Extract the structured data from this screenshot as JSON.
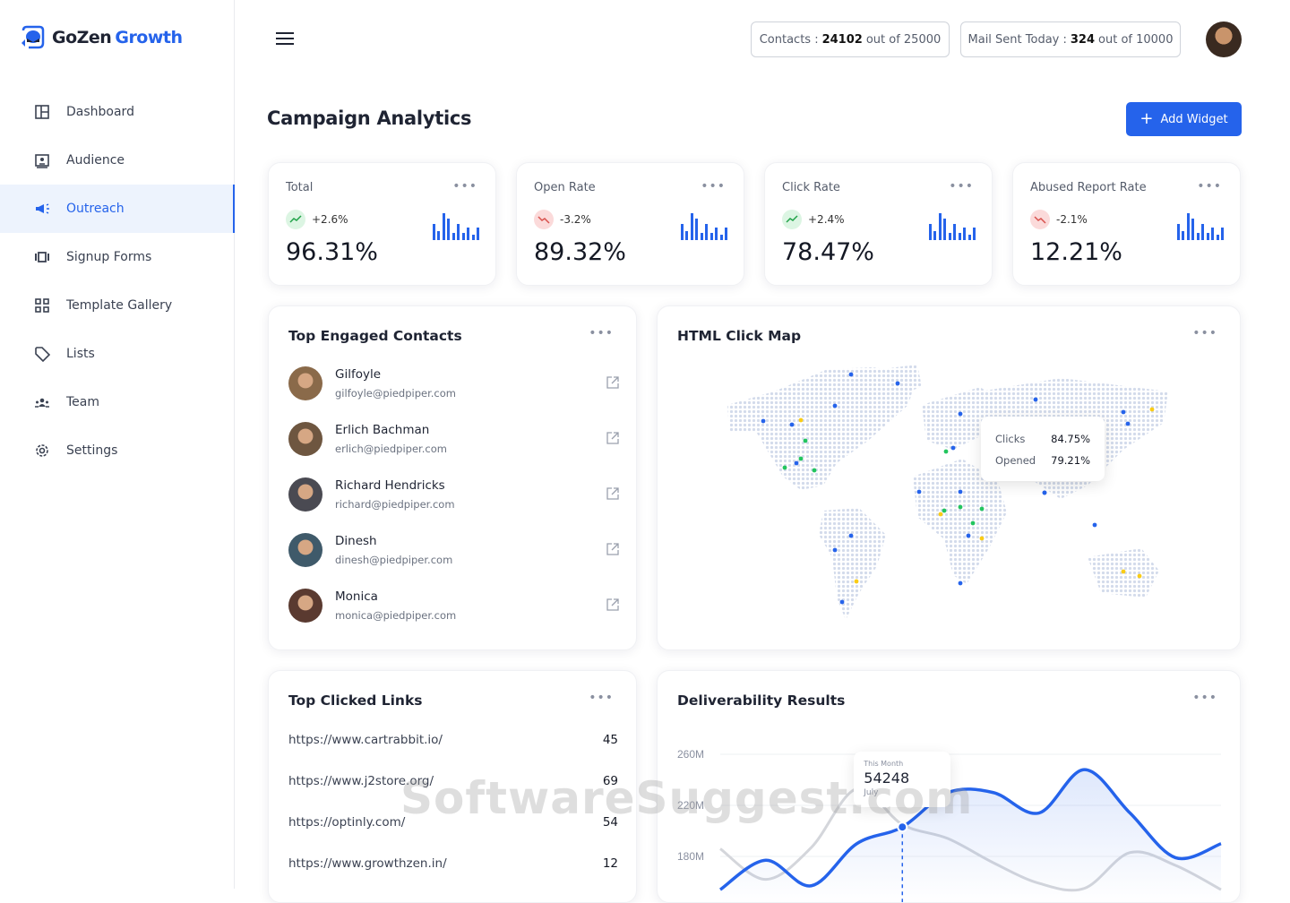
{
  "brand": {
    "name_part1": "GoZen",
    "name_part2": "Growth",
    "accent": "#2563eb"
  },
  "sidebar": {
    "items": [
      {
        "label": "Dashboard",
        "icon": "layout-icon"
      },
      {
        "label": "Audience",
        "icon": "contact-card-icon"
      },
      {
        "label": "Outreach",
        "icon": "megaphone-icon",
        "active": true
      },
      {
        "label": "Signup Forms",
        "icon": "carousel-icon"
      },
      {
        "label": "Template Gallery",
        "icon": "grid-icon"
      },
      {
        "label": "Lists",
        "icon": "tag-icon"
      },
      {
        "label": "Team",
        "icon": "team-icon"
      },
      {
        "label": "Settings",
        "icon": "gear-icon"
      }
    ]
  },
  "header": {
    "contacts": {
      "label": "Contacts :",
      "value": "24102",
      "suffix": "out of 25000"
    },
    "mail": {
      "label": "Mail Sent Today :",
      "value": "324",
      "suffix": "out of 10000"
    }
  },
  "page": {
    "title": "Campaign Analytics",
    "add_widget": "Add Widget"
  },
  "stats": [
    {
      "label": "Total",
      "change": "+2.6%",
      "trend": "up",
      "value": "96.31%"
    },
    {
      "label": "Open Rate",
      "change": "-3.2%",
      "trend": "down",
      "value": "89.32%"
    },
    {
      "label": "Click Rate",
      "change": "+2.4%",
      "trend": "up",
      "value": "78.47%"
    },
    {
      "label": "Abused Report Rate",
      "change": "-2.1%",
      "trend": "down",
      "value": "12.21%"
    }
  ],
  "contacts": {
    "title": "Top Engaged Contacts",
    "items": [
      {
        "name": "Gilfoyle",
        "email": "gilfoyle@piedpiper.com"
      },
      {
        "name": "Erlich Bachman",
        "email": "erlich@piedpiper.com"
      },
      {
        "name": "Richard Hendricks",
        "email": "richard@piedpiper.com"
      },
      {
        "name": "Dinesh",
        "email": "dinesh@piedpiper.com"
      },
      {
        "name": "Monica",
        "email": "monica@piedpiper.com"
      }
    ]
  },
  "clickmap": {
    "title": "HTML Click Map",
    "tooltip": {
      "clicks_label": "Clicks",
      "clicks": "84.75%",
      "opened_label": "Opened",
      "opened": "79.21%"
    }
  },
  "links": {
    "title": "Top Clicked Links",
    "items": [
      {
        "url": "https://www.cartrabbit.io/",
        "count": "45"
      },
      {
        "url": "https://www.j2store.org/",
        "count": "69"
      },
      {
        "url": "https://optinly.com/",
        "count": "54"
      },
      {
        "url": "https://www.growthzen.in/",
        "count": "12"
      }
    ]
  },
  "chart_data": {
    "type": "line",
    "title": "Deliverability Results",
    "xlabel": "",
    "ylabel": "",
    "y_ticks": [
      "260M",
      "220M",
      "180M"
    ],
    "ylim": [
      140,
      260
    ],
    "grid": true,
    "x": [
      1,
      2,
      3,
      4,
      5,
      6,
      7,
      8,
      9,
      10,
      11,
      12
    ],
    "series": [
      {
        "color": "#2563eb",
        "values": [
          154,
          177,
          157,
          190,
          203,
          230,
          230,
          214,
          248,
          214,
          179,
          190
        ],
        "filled": true
      },
      {
        "color": "#d4d6db",
        "values": [
          186,
          162,
          187,
          233,
          205,
          194,
          175,
          159,
          155,
          183,
          173,
          154
        ]
      }
    ],
    "tooltip": {
      "label": "This Month",
      "value": "54248",
      "period": "July"
    }
  },
  "watermark": "SoftwareSuggest.com"
}
